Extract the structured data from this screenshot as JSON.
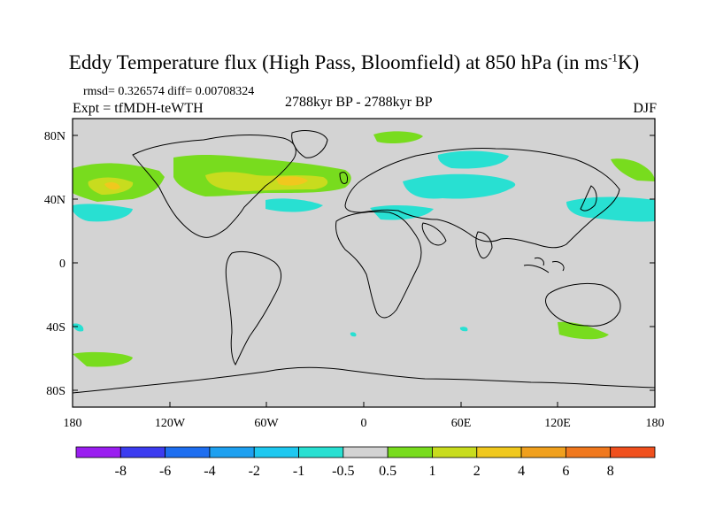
{
  "title": {
    "main": "Eddy Temperature flux (High Pass, Bloomfield) at 850 hPa (in ms",
    "superscript": "-1",
    "suffix": "K)"
  },
  "stats": "rmsd= 0.326574 diff= 0.00708324",
  "experiment": "Expt = tfMDH-teWTH",
  "period": "2788kyr BP - 2788kyr BP",
  "season": "DJF",
  "map": {
    "background_color": "#d3d3d3",
    "lat_labels": [
      "80N",
      "40N",
      "0",
      "40S",
      "80S"
    ],
    "lon_labels": [
      "180",
      "120W",
      "60W",
      "0",
      "60E",
      "120E",
      "180"
    ]
  },
  "colorbar": {
    "colors": [
      "#9a1ef0",
      "#3c3cf0",
      "#1e6ef0",
      "#1ea0f0",
      "#1ec8f0",
      "#28e0d2",
      "#d3d3d3",
      "#78dc1e",
      "#c8dc1e",
      "#f0c81e",
      "#f0a01e",
      "#f0781e",
      "#f0501e"
    ],
    "labels": [
      "-8",
      "-6",
      "-4",
      "-2",
      "-1",
      "-0.5",
      "0.5",
      "1",
      "2",
      "4",
      "6",
      "8"
    ]
  }
}
